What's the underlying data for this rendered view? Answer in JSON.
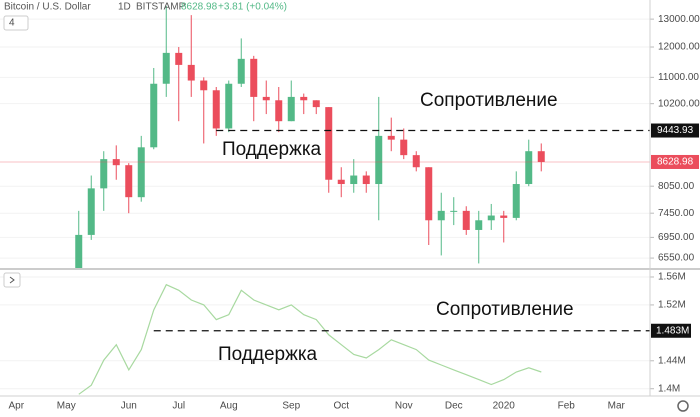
{
  "header": {
    "symbol": "Bitcoin / U.S. Dollar",
    "interval": "1D",
    "exchange": "BITSTAMP",
    "change": "+3.81 (+0.04%)",
    "button": "4"
  },
  "chart_data": [
    {
      "type": "candlestick",
      "log_scale": true,
      "grid": true,
      "ylim": [
        6366,
        13733
      ],
      "yticks": [
        {
          "value": 6550,
          "label": "6550.00"
        },
        {
          "value": 6950,
          "label": "6950.00"
        },
        {
          "value": 7450,
          "label": "7450.00"
        },
        {
          "value": 8050,
          "label": "8050.00"
        },
        {
          "value": 10200,
          "label": "10200.00"
        },
        {
          "value": 11000,
          "label": "11000.00"
        },
        {
          "value": 12000,
          "label": "12000.00"
        },
        {
          "value": 13000,
          "label": "13000.00"
        }
      ],
      "up_color": "#53b987",
      "down_color": "#eb4d5c",
      "open": [
        null,
        null,
        null,
        null,
        null,
        5700,
        7000,
        8000,
        8700,
        8550,
        7800,
        9000,
        10800,
        11800,
        11400,
        10900,
        10600,
        9500,
        10800,
        11600,
        10400,
        10300,
        9700,
        10400,
        10300,
        10100,
        8200,
        8100,
        8300,
        8100,
        9300,
        9200,
        8800,
        8500,
        7300,
        7500,
        7500,
        7100,
        7300,
        7400,
        7350,
        8100,
        8900,
        null,
        null,
        null,
        null,
        null,
        null,
        null,
        null,
        null
      ],
      "high": [
        null,
        null,
        null,
        null,
        null,
        7500,
        8300,
        8900,
        9050,
        8600,
        9300,
        11300,
        13500,
        12000,
        13150,
        11000,
        10700,
        10900,
        12300,
        11700,
        10900,
        10700,
        10900,
        10500,
        10300,
        10100,
        8500,
        8700,
        8400,
        10400,
        9800,
        9500,
        8900,
        8500,
        7900,
        7800,
        7600,
        7500,
        7650,
        7500,
        8400,
        9200,
        9100,
        null,
        null,
        null,
        null,
        null,
        null,
        null,
        null,
        null
      ],
      "low": [
        null,
        null,
        null,
        null,
        null,
        5600,
        6900,
        7500,
        8200,
        7450,
        7700,
        8950,
        10400,
        9700,
        10400,
        9100,
        9300,
        9400,
        10700,
        9700,
        9900,
        9400,
        9700,
        9900,
        9900,
        7900,
        7800,
        7900,
        7900,
        7300,
        8900,
        8700,
        8400,
        6800,
        6600,
        7200,
        7000,
        6450,
        7100,
        6850,
        7300,
        8050,
        8400,
        null,
        null,
        null,
        null,
        null,
        null,
        null,
        null,
        null
      ],
      "close": [
        null,
        null,
        null,
        null,
        null,
        7000,
        8000,
        8700,
        8550,
        7800,
        9000,
        10800,
        11800,
        11400,
        10900,
        10600,
        9500,
        10800,
        11600,
        10400,
        10300,
        9700,
        10400,
        10300,
        10100,
        8200,
        8100,
        8300,
        8100,
        9300,
        9200,
        8800,
        8500,
        7300,
        7500,
        7500,
        7100,
        7300,
        7400,
        7350,
        8100,
        8900,
        8628.98,
        null,
        null,
        null,
        null,
        null,
        null,
        null,
        null,
        null
      ],
      "resistance": 9443.93,
      "resistance_color": "#111111",
      "last_price": 8628.98,
      "last_color": "#eb4d5c",
      "annotations": [
        "Сопротивление",
        "Поддержка"
      ]
    },
    {
      "type": "line",
      "color": "#a8d9a0",
      "grid": true,
      "categories": [
        "Apr",
        null,
        null,
        null,
        "May",
        null,
        null,
        null,
        null,
        "Jun",
        null,
        null,
        null,
        "Jul",
        null,
        null,
        null,
        "Aug",
        null,
        null,
        null,
        null,
        "Sep",
        null,
        null,
        null,
        "Oct",
        null,
        null,
        null,
        null,
        "Nov",
        null,
        null,
        null,
        "Dec",
        null,
        null,
        null,
        "2020",
        null,
        null,
        null,
        null,
        "Feb",
        null,
        null,
        null,
        "Mar",
        null,
        null,
        null
      ],
      "values": [
        null,
        null,
        null,
        null,
        null,
        1392000,
        1405000,
        1441000,
        1463000,
        1427000,
        1456000,
        1513000,
        1549000,
        1541000,
        1527000,
        1520000,
        1499000,
        1506000,
        1541000,
        1527000,
        1520000,
        1513000,
        1520000,
        1506000,
        1499000,
        1477000,
        1463000,
        1449000,
        1444000,
        1456000,
        1470000,
        1463000,
        1456000,
        1441000,
        1434000,
        1427000,
        1420000,
        1413000,
        1406000,
        1413000,
        1424000,
        1430000,
        1424000,
        null,
        null,
        null,
        null,
        null,
        null,
        null,
        null,
        null
      ],
      "ylim": [
        1391000,
        1570000
      ],
      "yticks": [
        {
          "value": 1400000,
          "label": "1.4M"
        },
        {
          "value": 1440000,
          "label": "1.44M"
        },
        {
          "value": 1520000,
          "label": "1.52M"
        },
        {
          "value": 1560000,
          "label": "1.56M"
        }
      ],
      "level": {
        "value": 1483000,
        "label": "1.483M"
      },
      "level_color": "#111111",
      "annotations": [
        "Сопротивление",
        "Поддержка"
      ]
    }
  ]
}
